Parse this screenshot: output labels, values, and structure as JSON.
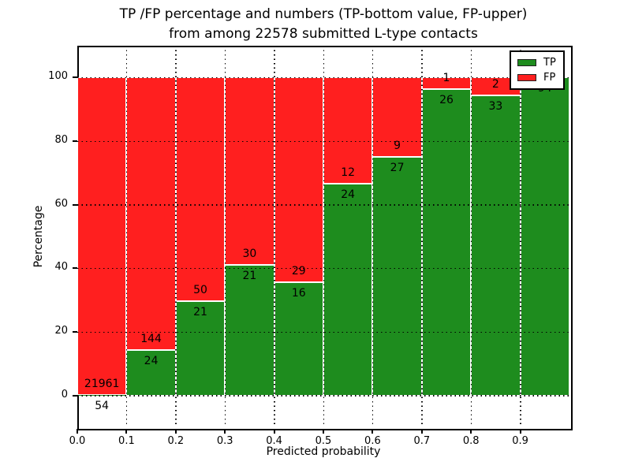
{
  "title": {
    "line1": "TP /FP percentage and numbers (TP-bottom value, FP-upper)",
    "line2": "from among 22578 submitted L-type contacts"
  },
  "axes": {
    "xlabel": "Predicted probability",
    "ylabel": "Percentage",
    "x_tick_labels": [
      "0.0",
      "0.1",
      "0.2",
      "0.3",
      "0.4",
      "0.5",
      "0.6",
      "0.7",
      "0.8",
      "0.9"
    ],
    "y_tick_labels": [
      "0",
      "20",
      "40",
      "60",
      "80",
      "100"
    ],
    "y_tick_values": [
      0,
      20,
      40,
      60,
      80,
      100
    ],
    "x_tick_values": [
      0,
      0.1,
      0.2,
      0.3,
      0.4,
      0.5,
      0.6,
      0.7,
      0.8,
      0.9
    ],
    "xlim": [
      0,
      1
    ],
    "ylim": [
      -10,
      110
    ],
    "grid": "dotted"
  },
  "legend": {
    "position": "upper-right",
    "items": [
      {
        "label": "TP",
        "color": "#1e8c1e"
      },
      {
        "label": "FP",
        "color": "#ff1f1f"
      }
    ]
  },
  "chart_data": {
    "type": "bar",
    "stacked": true,
    "normalized_to_percent": true,
    "total_contacts": 22578,
    "bin_edges": [
      0.0,
      0.1,
      0.2,
      0.3,
      0.4,
      0.5,
      0.6,
      0.7,
      0.8,
      0.9,
      1.0
    ],
    "categories": [
      "0.0-0.1",
      "0.1-0.2",
      "0.2-0.3",
      "0.3-0.4",
      "0.4-0.5",
      "0.5-0.6",
      "0.6-0.7",
      "0.7-0.8",
      "0.8-0.9",
      "0.9-1.0"
    ],
    "series": [
      {
        "name": "TP",
        "color": "#1e8c1e",
        "values": [
          54,
          24,
          21,
          21,
          16,
          24,
          27,
          26,
          33,
          94
        ]
      },
      {
        "name": "FP",
        "color": "#ff1f1f",
        "values": [
          21961,
          144,
          50,
          30,
          29,
          12,
          9,
          1,
          2,
          0
        ]
      }
    ],
    "tp_percent": [
      0.25,
      14.29,
      29.58,
      41.18,
      35.56,
      66.67,
      75.0,
      96.3,
      94.29,
      100.0
    ],
    "bar_edge_color": "#ffffff",
    "title": "TP /FP percentage and numbers (TP-bottom value, FP-upper) from among 22578 submitted L-type contacts",
    "xlabel": "Predicted probability",
    "ylabel": "Percentage"
  }
}
